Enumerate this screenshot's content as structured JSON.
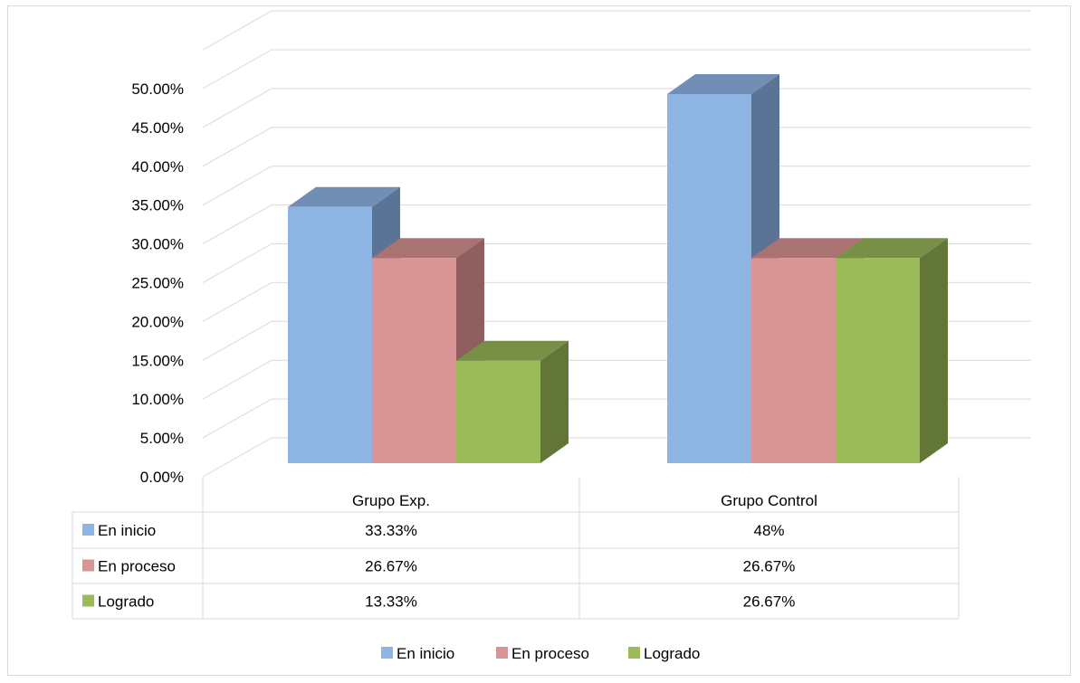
{
  "chart_data": {
    "type": "bar",
    "categories": [
      "Grupo Exp.",
      "Grupo Control"
    ],
    "series": [
      {
        "name": "En inicio",
        "values": [
          33.33,
          48
        ],
        "labels": [
          "33.33%",
          "48%"
        ],
        "color": "#8DB4E2",
        "side_color": "#5B7496",
        "top_color": "#718FB5"
      },
      {
        "name": "En proceso",
        "values": [
          26.67,
          26.67
        ],
        "labels": [
          "26.67%",
          "26.67%"
        ],
        "color": "#D99594",
        "side_color": "#8E5F5E",
        "top_color": "#A87372"
      },
      {
        "name": "Logrado",
        "values": [
          13.33,
          26.67
        ],
        "labels": [
          "13.33%",
          "26.67%"
        ],
        "color": "#9BBB59",
        "side_color": "#627638",
        "top_color": "#789046"
      }
    ],
    "y_ticks": [
      "0.00%",
      "5.00%",
      "10.00%",
      "15.00%",
      "20.00%",
      "25.00%",
      "30.00%",
      "35.00%",
      "40.00%",
      "45.00%",
      "50.00%"
    ],
    "ylim": [
      0,
      50
    ],
    "grid": true,
    "data_table": true,
    "legend_position": "bottom"
  }
}
